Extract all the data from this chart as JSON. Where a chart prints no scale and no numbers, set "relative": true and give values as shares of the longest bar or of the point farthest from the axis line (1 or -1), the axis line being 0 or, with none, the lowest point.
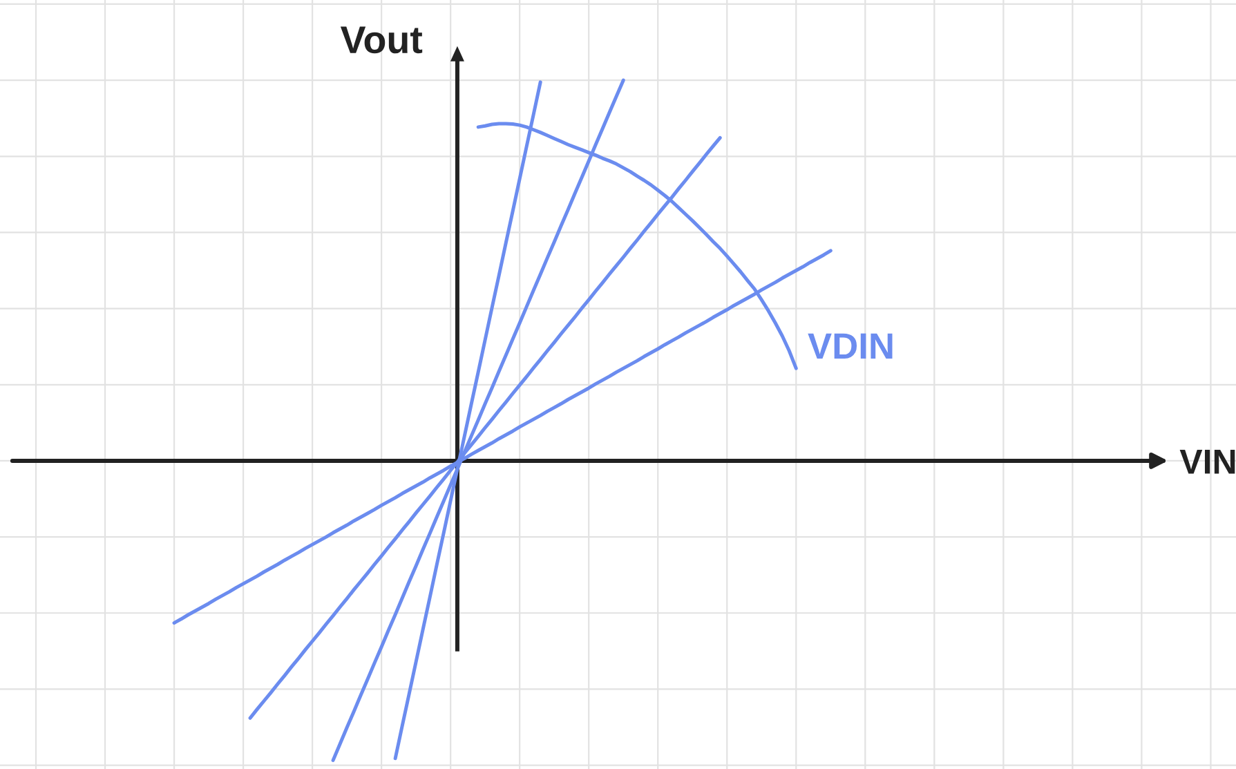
{
  "chart_data": {
    "type": "line",
    "relative": true,
    "ylabel": "Vout",
    "annotations": [
      "VIN"
    ],
    "grid": true,
    "tick_labels": false,
    "line_style": "solid",
    "categories": [
      null,
      null,
      null,
      null,
      null,
      null,
      null,
      null,
      null,
      null,
      null,
      null,
      null,
      null,
      null,
      null,
      null,
      null,
      null,
      null,
      null,
      null,
      null,
      null,
      null,
      null,
      null,
      null,
      null,
      null,
      null,
      null,
      null,
      null,
      null,
      null,
      null,
      null,
      null,
      null,
      null,
      null,
      null,
      null,
      null,
      null,
      null,
      null,
      null,
      null,
      null,
      null,
      null,
      null,
      null,
      null,
      null,
      null,
      null,
      null,
      null,
      null,
      null,
      null,
      null,
      null,
      null,
      null,
      null,
      null,
      null,
      null,
      null,
      null,
      null,
      null,
      null,
      null,
      null,
      null,
      null,
      null,
      null,
      null,
      null,
      null,
      null,
      null,
      null,
      null,
      null,
      null,
      null,
      null,
      null,
      null
    ],
    "series": [
      {
        "color": "#6b8cef",
        "values": [
          null,
          null,
          null,
          null,
          null,
          null,
          null,
          null,
          null,
          null,
          null,
          null,
          null,
          null,
          null,
          null,
          null,
          null,
          null,
          null,
          null,
          null,
          null,
          null,
          null,
          null,
          null,
          null,
          null,
          null,
          null,
          null,
          -0.782,
          -0.697,
          -0.613,
          -0.528,
          -0.443,
          -0.359,
          -0.274,
          -0.19,
          -0.105,
          -0.02,
          0.064,
          0.149,
          0.233,
          0.318,
          0.403,
          0.487,
          0.572,
          0.656,
          0.741,
          0.826,
          0.91,
          0.995,
          null,
          null,
          null,
          null,
          null,
          null,
          null,
          null,
          null,
          null,
          null,
          null,
          null,
          null,
          null,
          null,
          null,
          null,
          null,
          null,
          null,
          null,
          null,
          null,
          null,
          null,
          null,
          null,
          null,
          null,
          null,
          null,
          null,
          null,
          null,
          null,
          null,
          null,
          null,
          null,
          null,
          null
        ]
      },
      {
        "color": "#6b8cef",
        "values": [
          null,
          null,
          null,
          null,
          null,
          null,
          null,
          null,
          null,
          null,
          null,
          null,
          null,
          null,
          null,
          null,
          null,
          null,
          null,
          null,
          null,
          null,
          null,
          -0.787,
          -0.744,
          -0.701,
          -0.659,
          -0.616,
          -0.574,
          -0.531,
          -0.489,
          -0.446,
          -0.404,
          -0.361,
          -0.318,
          -0.276,
          -0.233,
          -0.191,
          -0.148,
          -0.106,
          -0.063,
          -0.021,
          0.022,
          0.065,
          0.107,
          0.15,
          0.192,
          0.235,
          0.277,
          0.32,
          0.362,
          0.405,
          0.448,
          0.49,
          0.533,
          0.575,
          0.618,
          0.66,
          0.703,
          0.745,
          0.788,
          0.831,
          0.873,
          0.916,
          0.958,
          1.0,
          null,
          null,
          null,
          null,
          null,
          null,
          null,
          null,
          null,
          null,
          null,
          null,
          null,
          null,
          null,
          null,
          null,
          null,
          null,
          null,
          null,
          null,
          null,
          null,
          null,
          null,
          null,
          null,
          null,
          null
        ]
      },
      {
        "color": "#6b8cef",
        "values": [
          null,
          null,
          null,
          null,
          null,
          null,
          null,
          null,
          null,
          null,
          null,
          -0.676,
          -0.653,
          -0.631,
          -0.609,
          -0.586,
          -0.564,
          -0.541,
          -0.519,
          -0.496,
          -0.474,
          -0.452,
          -0.429,
          -0.407,
          -0.384,
          -0.362,
          -0.339,
          -0.317,
          -0.295,
          -0.272,
          -0.25,
          -0.227,
          -0.205,
          -0.182,
          -0.16,
          -0.137,
          -0.115,
          -0.093,
          -0.07,
          -0.048,
          -0.025,
          -0.003,
          0.02,
          0.042,
          0.064,
          0.087,
          0.109,
          0.132,
          0.154,
          0.177,
          0.199,
          0.221,
          0.244,
          0.266,
          0.289,
          0.311,
          0.334,
          0.356,
          0.378,
          0.401,
          0.423,
          0.446,
          0.468,
          0.491,
          0.513,
          0.535,
          0.558,
          0.58,
          0.603,
          0.625,
          0.648,
          0.67,
          0.692,
          0.715,
          0.737,
          0.76,
          0.782,
          0.805,
          0.827,
          0.849,
          null,
          null,
          null,
          null,
          null,
          null,
          null,
          null,
          null,
          null,
          null,
          null,
          null,
          null,
          null,
          null
        ]
      },
      {
        "color": "#6b8cef",
        "values": [
          -0.426,
          -0.416,
          -0.405,
          -0.395,
          -0.385,
          -0.375,
          -0.364,
          -0.354,
          -0.344,
          -0.333,
          -0.323,
          -0.313,
          -0.303,
          -0.292,
          -0.282,
          -0.272,
          -0.261,
          -0.251,
          -0.241,
          -0.23,
          -0.22,
          -0.21,
          -0.2,
          -0.189,
          -0.179,
          -0.169,
          -0.158,
          -0.148,
          -0.138,
          -0.128,
          -0.117,
          -0.107,
          -0.097,
          -0.086,
          -0.076,
          -0.066,
          -0.056,
          -0.045,
          -0.035,
          -0.025,
          -0.014,
          -0.004,
          0.006,
          0.017,
          0.027,
          0.037,
          0.047,
          0.058,
          0.068,
          0.078,
          0.089,
          0.099,
          0.109,
          0.119,
          0.13,
          0.14,
          0.15,
          0.161,
          0.171,
          0.181,
          0.191,
          0.202,
          0.212,
          0.222,
          0.233,
          0.243,
          0.253,
          0.263,
          0.274,
          0.284,
          0.294,
          0.305,
          0.315,
          0.325,
          0.336,
          0.346,
          0.356,
          0.366,
          0.377,
          0.387,
          0.397,
          0.408,
          0.418,
          0.428,
          0.438,
          0.449,
          0.459,
          0.469,
          0.48,
          0.49,
          0.5,
          0.51,
          0.521,
          0.531,
          0.541,
          0.552
        ]
      },
      {
        "name": "VDIN",
        "color": "#6b8cef",
        "values": [
          null,
          null,
          null,
          null,
          null,
          null,
          null,
          null,
          null,
          null,
          null,
          null,
          null,
          null,
          null,
          null,
          null,
          null,
          null,
          null,
          null,
          null,
          null,
          null,
          null,
          null,
          null,
          null,
          null,
          null,
          null,
          null,
          null,
          null,
          null,
          null,
          null,
          null,
          null,
          null,
          null,
          null,
          null,
          null,
          0.877,
          0.88,
          0.884,
          0.886,
          0.886,
          0.885,
          0.882,
          0.877,
          0.87,
          0.863,
          0.855,
          0.847,
          0.839,
          0.831,
          0.824,
          0.817,
          0.81,
          0.803,
          0.795,
          0.788,
          0.78,
          0.77,
          0.76,
          0.748,
          0.737,
          0.725,
          0.711,
          0.697,
          0.682,
          0.665,
          0.648,
          0.631,
          0.613,
          0.595,
          0.576,
          0.558,
          0.538,
          0.517,
          0.496,
          0.473,
          0.451,
          0.423,
          0.394,
          0.362,
          0.328,
          0.289,
          0.243,
          null,
          null,
          null,
          null,
          null
        ]
      }
    ]
  }
}
